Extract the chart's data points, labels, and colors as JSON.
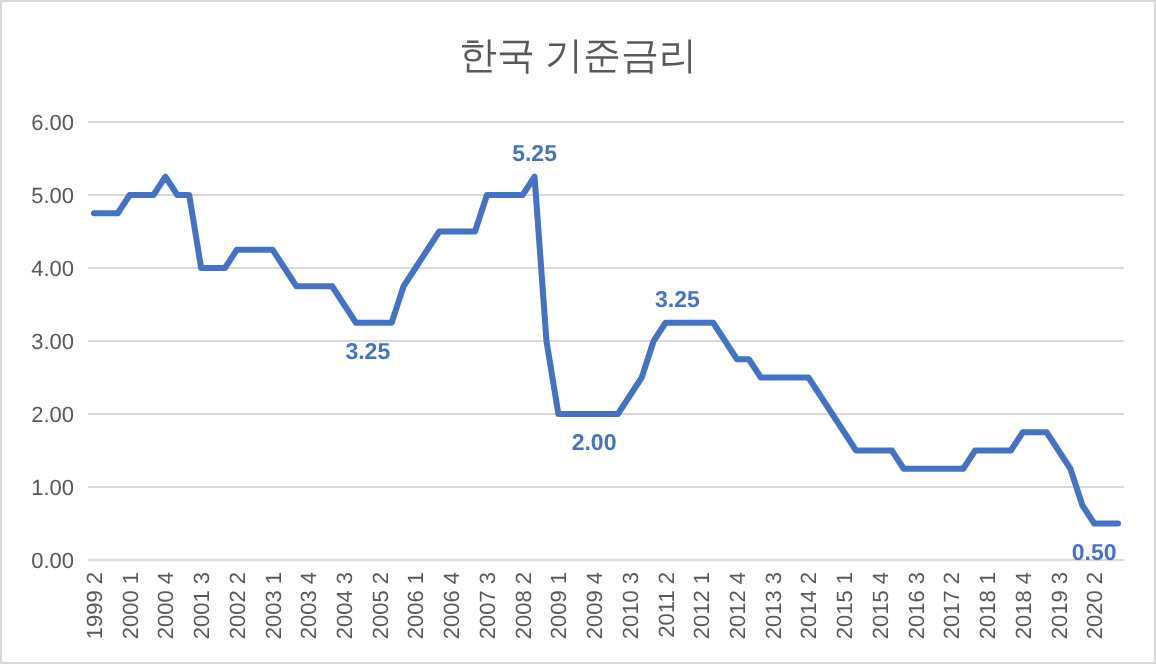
{
  "chart_data": {
    "type": "line",
    "title": "한국 기준금리",
    "categories": [
      "1999 2",
      null,
      null,
      "2000 1",
      null,
      null,
      "2000 4",
      null,
      null,
      "2001 3",
      null,
      null,
      "2002 2",
      null,
      null,
      "2003 1",
      null,
      null,
      "2003 4",
      null,
      null,
      "2004 3",
      null,
      null,
      "2005 2",
      null,
      null,
      "2006 1",
      null,
      null,
      "2006 4",
      null,
      null,
      "2007 3",
      null,
      null,
      "2008 2",
      null,
      null,
      "2009 1",
      null,
      null,
      "2009 4",
      null,
      null,
      "2010 3",
      null,
      null,
      "2011 2",
      null,
      null,
      "2012 1",
      null,
      null,
      "2012 4",
      null,
      null,
      "2013 3",
      null,
      null,
      "2014 2",
      null,
      null,
      "2015 1",
      null,
      null,
      "2015 4",
      null,
      null,
      "2016 3",
      null,
      null,
      "2017 2",
      null,
      null,
      "2018 1",
      null,
      null,
      "2018 4",
      null,
      null,
      "2019 3",
      null,
      null,
      "2020 2",
      null,
      null
    ],
    "series": [
      {
        "color": "#4472c4",
        "values": [
          4.75,
          4.75,
          4.75,
          5.0,
          5.0,
          5.0,
          5.25,
          5.0,
          5.0,
          4.0,
          4.0,
          4.0,
          4.25,
          4.25,
          4.25,
          4.25,
          4.0,
          3.75,
          3.75,
          3.75,
          3.75,
          3.5,
          3.25,
          3.25,
          3.25,
          3.25,
          3.75,
          4.0,
          4.25,
          4.5,
          4.5,
          4.5,
          4.5,
          5.0,
          5.0,
          5.0,
          5.0,
          5.25,
          3.0,
          2.0,
          2.0,
          2.0,
          2.0,
          2.0,
          2.0,
          2.25,
          2.5,
          3.0,
          3.25,
          3.25,
          3.25,
          3.25,
          3.25,
          3.0,
          2.75,
          2.75,
          2.5,
          2.5,
          2.5,
          2.5,
          2.5,
          2.25,
          2.0,
          1.75,
          1.5,
          1.5,
          1.5,
          1.5,
          1.25,
          1.25,
          1.25,
          1.25,
          1.25,
          1.25,
          1.5,
          1.5,
          1.5,
          1.5,
          1.75,
          1.75,
          1.75,
          1.5,
          1.25,
          0.75,
          0.5,
          0.5,
          0.5
        ],
        "value_labels": [
          null,
          null,
          null,
          null,
          null,
          null,
          null,
          null,
          null,
          null,
          null,
          null,
          null,
          null,
          null,
          null,
          null,
          null,
          null,
          null,
          null,
          null,
          null,
          "3.25",
          null,
          null,
          null,
          null,
          null,
          null,
          null,
          null,
          null,
          null,
          null,
          null,
          null,
          "5.25",
          null,
          null,
          null,
          null,
          "2.00",
          null,
          null,
          null,
          null,
          null,
          null,
          "3.25",
          null,
          null,
          null,
          null,
          null,
          null,
          null,
          null,
          null,
          null,
          null,
          null,
          null,
          null,
          null,
          null,
          null,
          null,
          null,
          null,
          null,
          null,
          null,
          null,
          null,
          null,
          null,
          null,
          null,
          null,
          null,
          null,
          null,
          null,
          "0.50",
          null,
          null
        ]
      }
    ],
    "ylim": [
      0,
      6
    ],
    "yticks": [
      {
        "value": 0,
        "label": "0.00"
      },
      {
        "value": 1,
        "label": "1.00"
      },
      {
        "value": 2,
        "label": "2.00"
      },
      {
        "value": 3,
        "label": "3.00"
      },
      {
        "value": 4,
        "label": "4.00"
      },
      {
        "value": 5,
        "label": "5.00"
      },
      {
        "value": 6,
        "label": "6.00"
      }
    ],
    "grid": "y",
    "marker": "none",
    "line_style": "solid"
  }
}
